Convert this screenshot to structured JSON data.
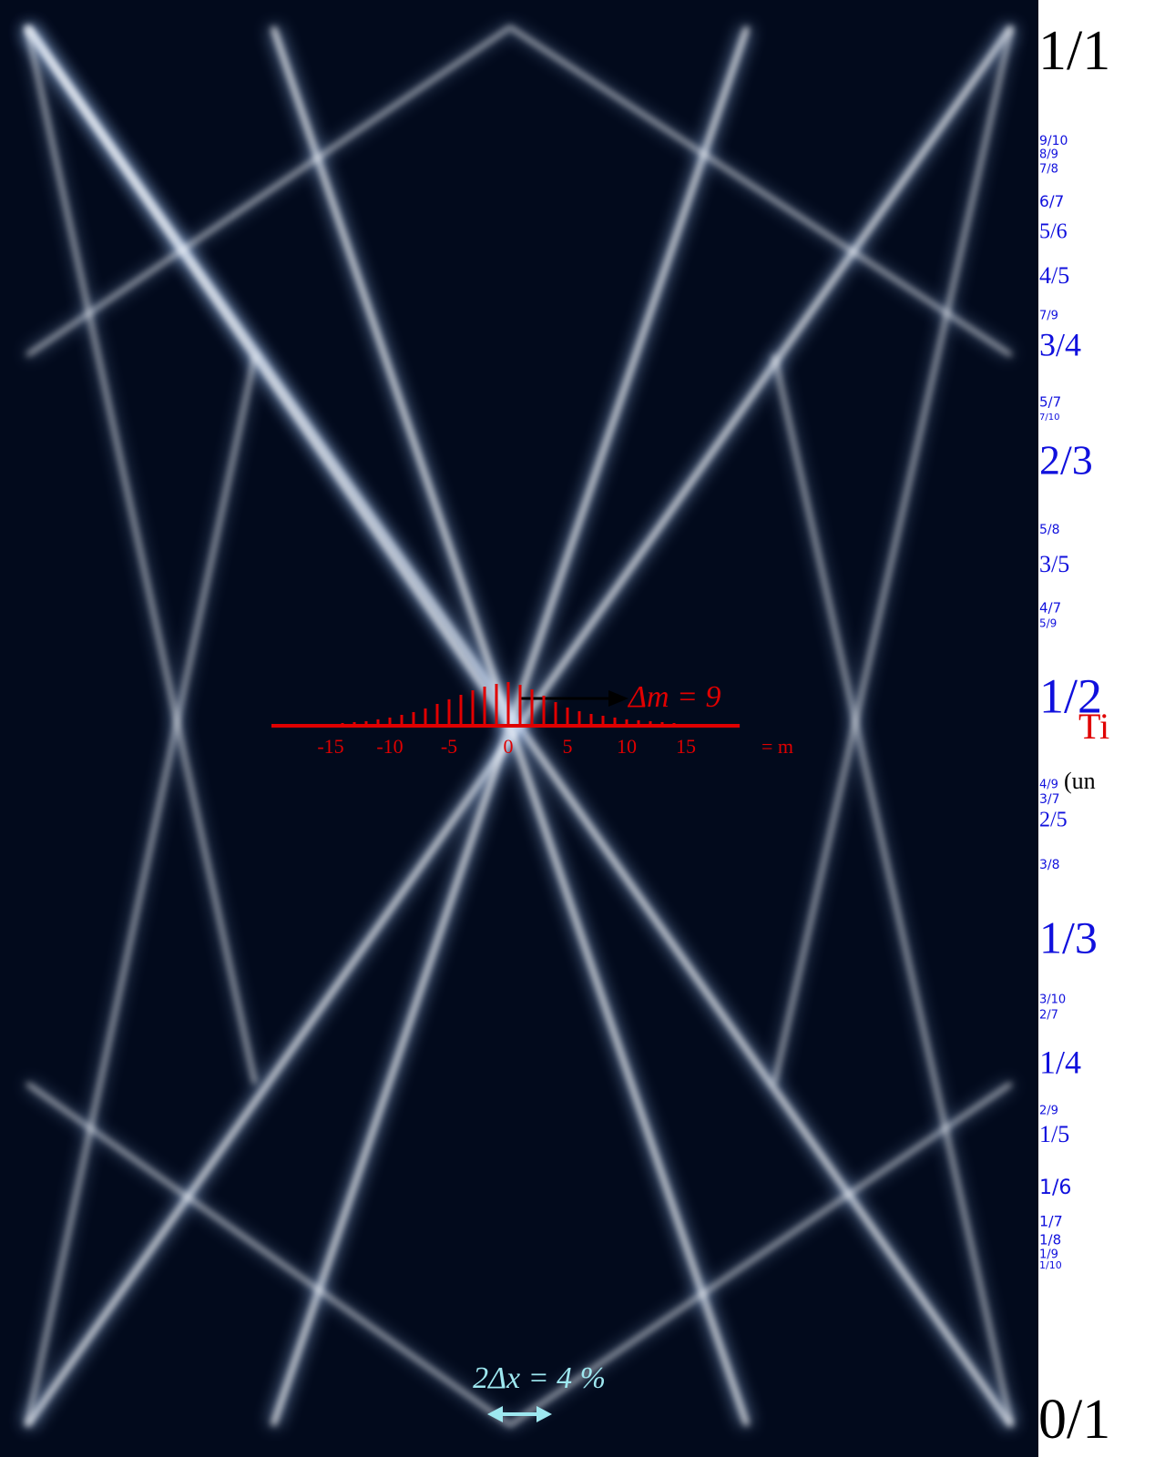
{
  "labels": {
    "top": "1/1",
    "bottom": "0/1",
    "fractions": [
      "9/10",
      "8/9",
      "7/8",
      "6/7",
      "5/6",
      "4/5",
      "7/9",
      "3/4",
      "5/7",
      "7/10",
      "2/3",
      "5/8",
      "3/5",
      "4/7",
      "5/9",
      "1/2",
      "4/9",
      "3/7",
      "2/5",
      "3/8",
      "1/3",
      "3/10",
      "2/7",
      "1/4",
      "2/9",
      "1/5",
      "1/6",
      "1/7",
      "1/8",
      "1/9",
      "1/10"
    ]
  },
  "caption": {
    "title_fragment": "Ti",
    "note_fragment": "(un"
  },
  "inset": {
    "delta_m": "Δm = 9",
    "axis_ticks": [
      -15,
      -10,
      -5,
      0,
      5,
      10,
      15
    ],
    "axis_label": "= m",
    "bar_m": [
      -14,
      -13,
      -12,
      -11,
      -10,
      -9,
      -8,
      -7,
      -6,
      -5,
      -4,
      -3,
      -2,
      -1,
      0,
      1,
      2,
      3,
      4,
      5,
      6,
      7,
      8,
      9,
      10,
      11,
      12,
      13,
      14
    ],
    "bars": [
      3,
      4,
      5,
      7,
      9,
      12,
      15,
      19,
      24,
      29,
      34,
      39,
      43,
      46,
      48,
      45,
      40,
      33,
      26,
      20,
      16,
      13,
      11,
      9,
      7,
      6,
      5,
      4,
      3
    ]
  },
  "footer": "2Δx = 4 %"
}
